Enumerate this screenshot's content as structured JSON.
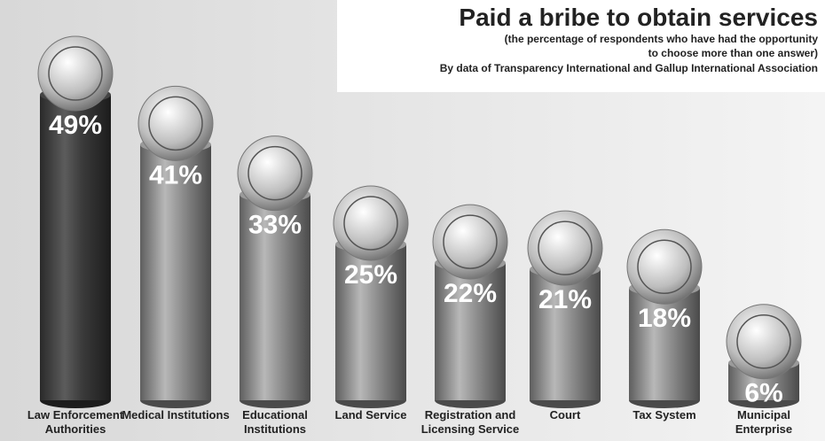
{
  "chart_data": {
    "type": "bar",
    "title": "Paid a bribe to obtain services",
    "subtitle": "(the percentage of respondents who have had the opportunity to choose more than one answer)",
    "source": "By data of  Transparency International and  Gallup International Association",
    "categories": [
      "Law Enforcement Authorities",
      "Medical Institutions",
      "Educational Institutions",
      "Land Service",
      "Registration and Licensing Service",
      "Court",
      "Tax System",
      "Municipal Enterprise"
    ],
    "values": [
      49,
      41,
      33,
      25,
      22,
      21,
      18,
      6
    ],
    "value_labels": [
      "49%",
      "41%",
      "33%",
      "25%",
      "22%",
      "21%",
      "18%",
      "6%"
    ],
    "color": "#8a8a8a"
  }
}
